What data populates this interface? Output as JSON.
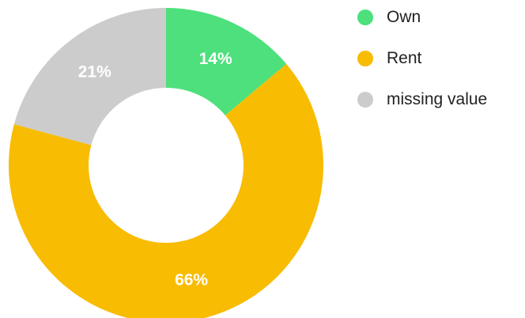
{
  "chart_data": {
    "type": "pie",
    "title": "",
    "donut": true,
    "legend_position": "top-right",
    "categories": [
      "Own",
      "Rent",
      "missing value"
    ],
    "values": [
      14,
      66,
      21
    ],
    "value_labels": [
      "14%",
      "66%",
      "21%"
    ],
    "colors": [
      "#4ee07c",
      "#f8bc03",
      "#cccccc"
    ]
  }
}
